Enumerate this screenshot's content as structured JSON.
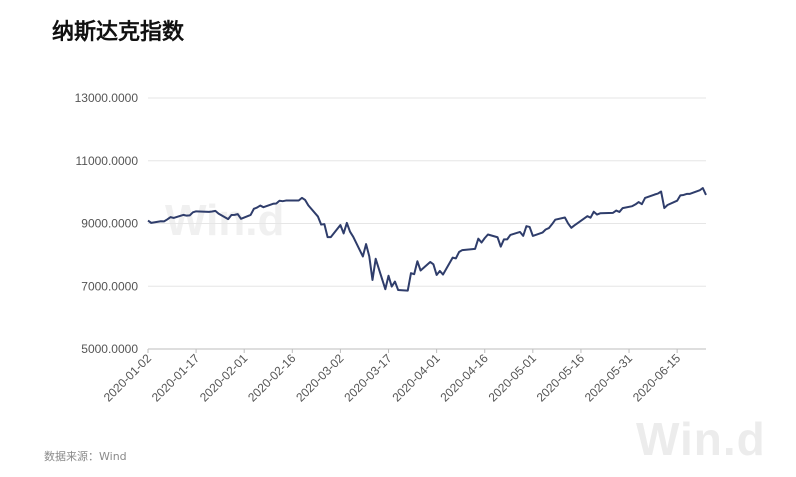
{
  "title": "纳斯达克指数",
  "source": "数据来源：Wind",
  "watermark": "Win.d",
  "colors": {
    "line": "#2f3d6b",
    "grid": "#e6e6e6",
    "axis": "#555555"
  },
  "chart_data": {
    "type": "line",
    "title": "纳斯达克指数",
    "xlabel": "",
    "ylabel": "",
    "ylim": [
      5000,
      13000
    ],
    "yticks": [
      "13000.0000",
      "11000.0000",
      "9000.0000",
      "7000.0000",
      "5000.0000"
    ],
    "xticks": [
      "2020-01-02",
      "2020-01-17",
      "2020-02-01",
      "2020-02-16",
      "2020-03-02",
      "2020-03-17",
      "2020-04-01",
      "2020-04-16",
      "2020-05-01",
      "2020-05-16",
      "2020-05-31",
      "2020-06-15"
    ],
    "grid": true,
    "legend": "none",
    "series": [
      {
        "name": "",
        "points": [
          [
            "2020-01-02",
            9092
          ],
          [
            "2020-01-03",
            9020
          ],
          [
            "2020-01-06",
            9071
          ],
          [
            "2020-01-07",
            9068
          ],
          [
            "2020-01-08",
            9129
          ],
          [
            "2020-01-09",
            9203
          ],
          [
            "2020-01-10",
            9178
          ],
          [
            "2020-01-13",
            9274
          ],
          [
            "2020-01-14",
            9251
          ],
          [
            "2020-01-15",
            9258
          ],
          [
            "2020-01-16",
            9357
          ],
          [
            "2020-01-17",
            9388
          ],
          [
            "2020-01-21",
            9370
          ],
          [
            "2020-01-22",
            9383
          ],
          [
            "2020-01-23",
            9402
          ],
          [
            "2020-01-24",
            9314
          ],
          [
            "2020-01-27",
            9139
          ],
          [
            "2020-01-28",
            9269
          ],
          [
            "2020-01-29",
            9275
          ],
          [
            "2020-01-30",
            9298
          ],
          [
            "2020-01-31",
            9150
          ],
          [
            "2020-02-03",
            9273
          ],
          [
            "2020-02-04",
            9467
          ],
          [
            "2020-02-05",
            9508
          ],
          [
            "2020-02-06",
            9572
          ],
          [
            "2020-02-07",
            9520
          ],
          [
            "2020-02-10",
            9628
          ],
          [
            "2020-02-11",
            9638
          ],
          [
            "2020-02-12",
            9725
          ],
          [
            "2020-02-13",
            9711
          ],
          [
            "2020-02-14",
            9731
          ],
          [
            "2020-02-18",
            9732
          ],
          [
            "2020-02-19",
            9817
          ],
          [
            "2020-02-20",
            9750
          ],
          [
            "2020-02-21",
            9577
          ],
          [
            "2020-02-24",
            9221
          ],
          [
            "2020-02-25",
            8966
          ],
          [
            "2020-02-26",
            8980
          ],
          [
            "2020-02-27",
            8566
          ],
          [
            "2020-02-28",
            8567
          ],
          [
            "2020-03-02",
            8952
          ],
          [
            "2020-03-03",
            8684
          ],
          [
            "2020-03-04",
            9019
          ],
          [
            "2020-03-05",
            8738
          ],
          [
            "2020-03-06",
            8576
          ],
          [
            "2020-03-09",
            7950
          ],
          [
            "2020-03-10",
            8344
          ],
          [
            "2020-03-11",
            7953
          ],
          [
            "2020-03-12",
            7201
          ],
          [
            "2020-03-13",
            7875
          ],
          [
            "2020-03-16",
            6905
          ],
          [
            "2020-03-17",
            7335
          ],
          [
            "2020-03-18",
            6990
          ],
          [
            "2020-03-19",
            7150
          ],
          [
            "2020-03-20",
            6880
          ],
          [
            "2020-03-23",
            6861
          ],
          [
            "2020-03-24",
            7418
          ],
          [
            "2020-03-25",
            7384
          ],
          [
            "2020-03-26",
            7798
          ],
          [
            "2020-03-27",
            7502
          ],
          [
            "2020-03-30",
            7774
          ],
          [
            "2020-03-31",
            7700
          ],
          [
            "2020-04-01",
            7360
          ],
          [
            "2020-04-02",
            7487
          ],
          [
            "2020-04-03",
            7374
          ],
          [
            "2020-04-06",
            7913
          ],
          [
            "2020-04-07",
            7887
          ],
          [
            "2020-04-08",
            8091
          ],
          [
            "2020-04-09",
            8153
          ],
          [
            "2020-04-13",
            8192
          ],
          [
            "2020-04-14",
            8516
          ],
          [
            "2020-04-15",
            8393
          ],
          [
            "2020-04-16",
            8533
          ],
          [
            "2020-04-17",
            8650
          ],
          [
            "2020-04-20",
            8561
          ],
          [
            "2020-04-21",
            8263
          ],
          [
            "2020-04-22",
            8495
          ],
          [
            "2020-04-23",
            8494
          ],
          [
            "2020-04-24",
            8635
          ],
          [
            "2020-04-27",
            8730
          ],
          [
            "2020-04-28",
            8607
          ],
          [
            "2020-04-29",
            8914
          ],
          [
            "2020-04-30",
            8890
          ],
          [
            "2020-05-01",
            8605
          ],
          [
            "2020-05-04",
            8710
          ],
          [
            "2020-05-05",
            8809
          ],
          [
            "2020-05-06",
            8854
          ],
          [
            "2020-05-07",
            8979
          ],
          [
            "2020-05-08",
            9121
          ],
          [
            "2020-05-11",
            9192
          ],
          [
            "2020-05-12",
            9002
          ],
          [
            "2020-05-13",
            8863
          ],
          [
            "2020-05-14",
            8943
          ],
          [
            "2020-05-15",
            9015
          ],
          [
            "2020-05-18",
            9235
          ],
          [
            "2020-05-19",
            9185
          ],
          [
            "2020-05-20",
            9375
          ],
          [
            "2020-05-21",
            9285
          ],
          [
            "2020-05-22",
            9325
          ],
          [
            "2020-05-26",
            9340
          ],
          [
            "2020-05-27",
            9412
          ],
          [
            "2020-05-28",
            9368
          ],
          [
            "2020-05-29",
            9490
          ],
          [
            "2020-06-01",
            9552
          ],
          [
            "2020-06-02",
            9608
          ],
          [
            "2020-06-03",
            9683
          ],
          [
            "2020-06-04",
            9616
          ],
          [
            "2020-06-05",
            9814
          ],
          [
            "2020-06-08",
            9924
          ],
          [
            "2020-06-09",
            9953
          ],
          [
            "2020-06-10",
            10020
          ],
          [
            "2020-06-11",
            9492
          ],
          [
            "2020-06-12",
            9589
          ],
          [
            "2020-06-15",
            9726
          ],
          [
            "2020-06-16",
            9895
          ],
          [
            "2020-06-17",
            9910
          ],
          [
            "2020-06-18",
            9943
          ],
          [
            "2020-06-19",
            9946
          ],
          [
            "2020-06-22",
            10056
          ],
          [
            "2020-06-23",
            10131
          ],
          [
            "2020-06-24",
            9909
          ]
        ]
      }
    ]
  }
}
